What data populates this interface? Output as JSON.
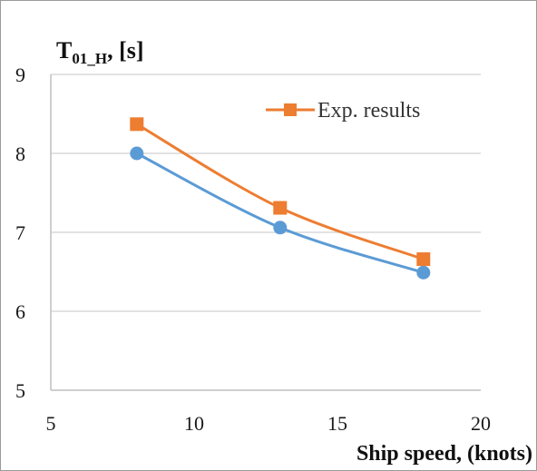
{
  "chart_data": {
    "type": "line",
    "ylabel_main": "T",
    "ylabel_sub": "01_H",
    "ylabel_unit": ", [s]",
    "xlabel": "Ship speed, (knots)",
    "xlim": [
      5,
      20
    ],
    "ylim": [
      5,
      9
    ],
    "xticks": [
      5,
      10,
      15,
      20
    ],
    "yticks": [
      5,
      6,
      7,
      8,
      9
    ],
    "grid": "horizontal",
    "legend_position": "top-right",
    "series": [
      {
        "name": "",
        "color": "#5B9BD5",
        "marker": "circle",
        "x": [
          8,
          13,
          18
        ],
        "y": [
          8.0,
          7.06,
          6.49
        ]
      },
      {
        "name": "Exp. results",
        "color": "#ED7D31",
        "marker": "square",
        "x": [
          8,
          13,
          18
        ],
        "y": [
          8.37,
          7.31,
          6.66
        ]
      }
    ]
  }
}
